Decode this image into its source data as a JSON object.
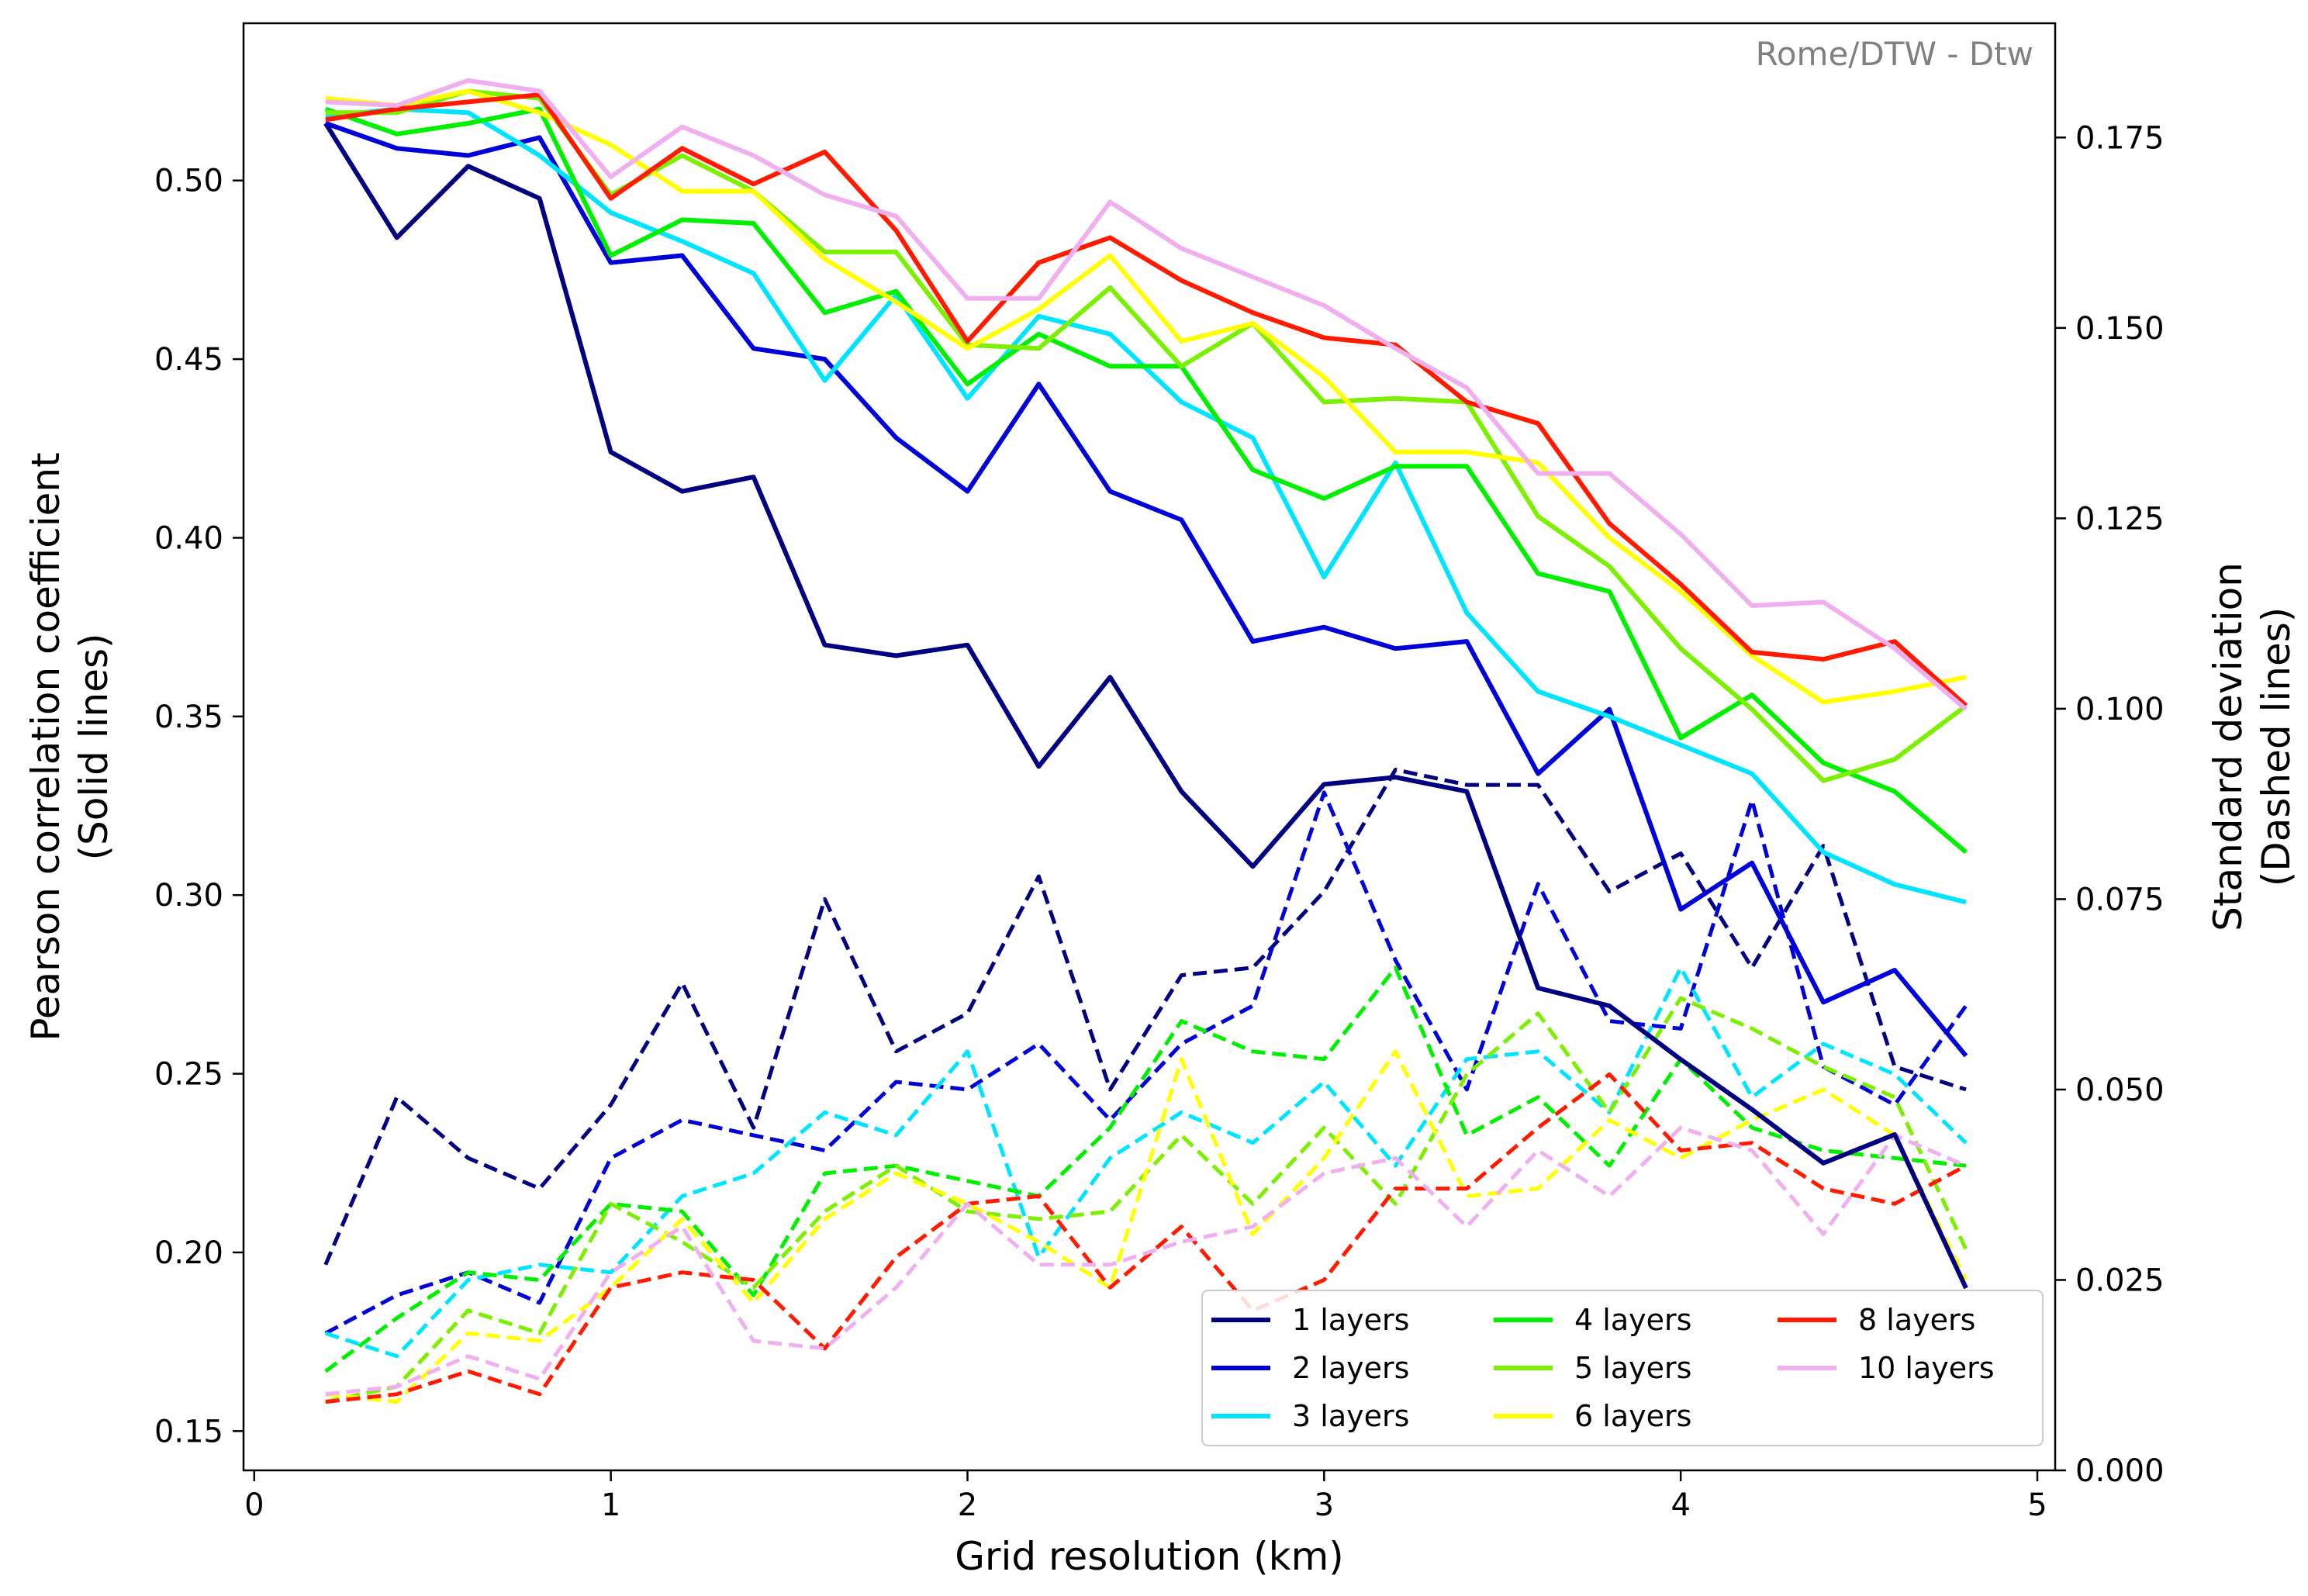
{
  "chart_data": {
    "type": "line",
    "annotation": "Rome/DTW - Dtw",
    "xlabel": "Grid resolution (km)",
    "ylabel_left": [
      "Pearson correlation coefficient",
      "(Solid lines)"
    ],
    "ylabel_right": [
      "Standard deviation",
      "(Dashed lines)"
    ],
    "xlim": [
      -0.03,
      5.05
    ],
    "ylim_left": [
      0.139,
      0.544
    ],
    "ylim_right": [
      0.0,
      0.19
    ],
    "x_ticks": [
      0,
      1,
      2,
      3,
      4,
      5
    ],
    "x_tick_labels": [
      "0",
      "1",
      "2",
      "3",
      "4",
      "5"
    ],
    "y_left_ticks": [
      0.15,
      0.2,
      0.25,
      0.3,
      0.35,
      0.4,
      0.45,
      0.5
    ],
    "y_left_tick_labels": [
      "0.15",
      "0.20",
      "0.25",
      "0.30",
      "0.35",
      "0.40",
      "0.45",
      "0.50"
    ],
    "y_right_ticks": [
      0.0,
      0.025,
      0.05,
      0.075,
      0.1,
      0.125,
      0.15,
      0.175
    ],
    "y_right_tick_labels": [
      "0.000",
      "0.025",
      "0.050",
      "0.075",
      "0.100",
      "0.125",
      "0.150",
      "0.175"
    ],
    "grid": false,
    "legend_position": "bottom-right",
    "legend_columns": 3,
    "x": [
      0.2,
      0.4,
      0.6,
      0.8,
      1.0,
      1.2,
      1.4,
      1.6,
      1.8,
      2.0,
      2.2,
      2.4,
      2.6,
      2.8,
      3.0,
      3.2,
      3.4,
      3.6,
      3.8,
      4.0,
      4.2,
      4.4,
      4.6,
      4.8
    ],
    "series": [
      {
        "name": "1 layers",
        "color": "#000080",
        "pearson": [
          0.516,
          0.484,
          0.504,
          0.495,
          0.424,
          0.413,
          0.417,
          0.37,
          0.367,
          0.37,
          0.336,
          0.361,
          0.329,
          0.308,
          0.331,
          0.333,
          0.329,
          0.274,
          0.269,
          0.254,
          0.24,
          0.225,
          0.233,
          0.19
        ],
        "std": [
          0.027,
          0.049,
          0.041,
          0.037,
          0.048,
          0.064,
          0.045,
          0.075,
          0.055,
          0.06,
          0.078,
          0.05,
          0.065,
          0.066,
          0.076,
          0.092,
          0.09,
          0.09,
          0.076,
          0.081,
          0.066,
          0.082,
          0.053,
          0.05
        ]
      },
      {
        "name": "2 layers",
        "color": "#0000d8",
        "pearson": [
          0.516,
          0.509,
          0.507,
          0.512,
          0.477,
          0.479,
          0.453,
          0.45,
          0.428,
          0.413,
          0.443,
          0.413,
          0.405,
          0.371,
          0.375,
          0.369,
          0.371,
          0.334,
          0.352,
          0.296,
          0.309,
          0.27,
          0.279,
          0.255
        ],
        "std": [
          0.018,
          0.023,
          0.026,
          0.022,
          0.041,
          0.046,
          0.044,
          0.042,
          0.051,
          0.05,
          0.056,
          0.046,
          0.056,
          0.061,
          0.089,
          0.067,
          0.05,
          0.077,
          0.059,
          0.058,
          0.088,
          0.053,
          0.048,
          0.061
        ]
      },
      {
        "name": "3 layers",
        "color": "#00e5ff",
        "pearson": [
          0.518,
          0.52,
          0.519,
          0.507,
          0.491,
          0.483,
          0.474,
          0.444,
          0.468,
          0.439,
          0.462,
          0.457,
          0.438,
          0.428,
          0.389,
          0.421,
          0.379,
          0.357,
          0.35,
          0.342,
          0.334,
          0.312,
          0.303,
          0.298
        ],
        "std": [
          0.018,
          0.015,
          0.025,
          0.027,
          0.026,
          0.036,
          0.039,
          0.047,
          0.044,
          0.055,
          0.028,
          0.041,
          0.047,
          0.043,
          0.051,
          0.04,
          0.054,
          0.055,
          0.047,
          0.066,
          0.049,
          0.056,
          0.052,
          0.043
        ]
      },
      {
        "name": "4 layers",
        "color": "#00f000",
        "pearson": [
          0.52,
          0.513,
          0.516,
          0.52,
          0.479,
          0.489,
          0.488,
          0.463,
          0.469,
          0.443,
          0.457,
          0.448,
          0.448,
          0.419,
          0.411,
          0.42,
          0.42,
          0.39,
          0.385,
          0.344,
          0.356,
          0.337,
          0.329,
          0.312
        ],
        "std": [
          0.013,
          0.02,
          0.026,
          0.025,
          0.035,
          0.034,
          0.023,
          0.039,
          0.04,
          0.038,
          0.036,
          0.045,
          0.059,
          0.055,
          0.054,
          0.066,
          0.044,
          0.049,
          0.04,
          0.054,
          0.045,
          0.042,
          0.041,
          0.04
        ]
      },
      {
        "name": "5 layers",
        "color": "#7bf000",
        "pearson": [
          0.519,
          0.519,
          0.525,
          0.523,
          0.496,
          0.507,
          0.497,
          0.48,
          0.48,
          0.454,
          0.453,
          0.47,
          0.448,
          0.46,
          0.438,
          0.439,
          0.438,
          0.406,
          0.392,
          0.369,
          0.352,
          0.332,
          0.338,
          0.353
        ],
        "std": [
          0.009,
          0.011,
          0.021,
          0.018,
          0.035,
          0.03,
          0.024,
          0.034,
          0.04,
          0.034,
          0.033,
          0.034,
          0.044,
          0.035,
          0.045,
          0.035,
          0.052,
          0.06,
          0.047,
          0.062,
          0.058,
          0.053,
          0.049,
          0.029
        ]
      },
      {
        "name": "6 layers",
        "color": "#ffff00",
        "pearson": [
          0.523,
          0.521,
          0.525,
          0.519,
          0.51,
          0.497,
          0.497,
          0.478,
          0.466,
          0.453,
          0.464,
          0.479,
          0.455,
          0.46,
          0.445,
          0.424,
          0.424,
          0.421,
          0.4,
          0.385,
          0.367,
          0.354,
          0.357,
          0.361
        ],
        "std": [
          0.01,
          0.009,
          0.018,
          0.017,
          0.024,
          0.033,
          0.022,
          0.033,
          0.039,
          0.035,
          0.03,
          0.024,
          0.054,
          0.031,
          0.041,
          0.055,
          0.036,
          0.037,
          0.046,
          0.041,
          0.046,
          0.05,
          0.044,
          0.025
        ]
      },
      {
        "name": "8 layers",
        "color": "#ff1a00",
        "pearson": [
          0.517,
          0.52,
          0.522,
          0.524,
          0.495,
          0.509,
          0.499,
          0.508,
          0.486,
          0.455,
          0.477,
          0.484,
          0.472,
          0.463,
          0.456,
          0.454,
          0.438,
          0.432,
          0.404,
          0.387,
          0.368,
          0.366,
          0.371,
          0.353
        ],
        "std": [
          0.009,
          0.01,
          0.013,
          0.01,
          0.024,
          0.026,
          0.025,
          0.016,
          0.028,
          0.035,
          0.036,
          0.024,
          0.032,
          0.021,
          0.025,
          0.037,
          0.037,
          0.045,
          0.052,
          0.042,
          0.043,
          0.037,
          0.035,
          0.04
        ]
      },
      {
        "name": "10 layers",
        "color": "#f0b0f0",
        "pearson": [
          0.522,
          0.521,
          0.528,
          0.525,
          0.501,
          0.515,
          0.507,
          0.496,
          0.49,
          0.467,
          0.467,
          0.494,
          0.481,
          0.473,
          0.465,
          0.453,
          0.442,
          0.418,
          0.418,
          0.401,
          0.381,
          0.382,
          0.369,
          0.352
        ],
        "std": [
          0.01,
          0.011,
          0.015,
          0.012,
          0.026,
          0.032,
          0.017,
          0.016,
          0.024,
          0.035,
          0.027,
          0.027,
          0.03,
          0.032,
          0.039,
          0.041,
          0.032,
          0.042,
          0.036,
          0.045,
          0.042,
          0.031,
          0.044,
          0.04
        ]
      }
    ]
  }
}
